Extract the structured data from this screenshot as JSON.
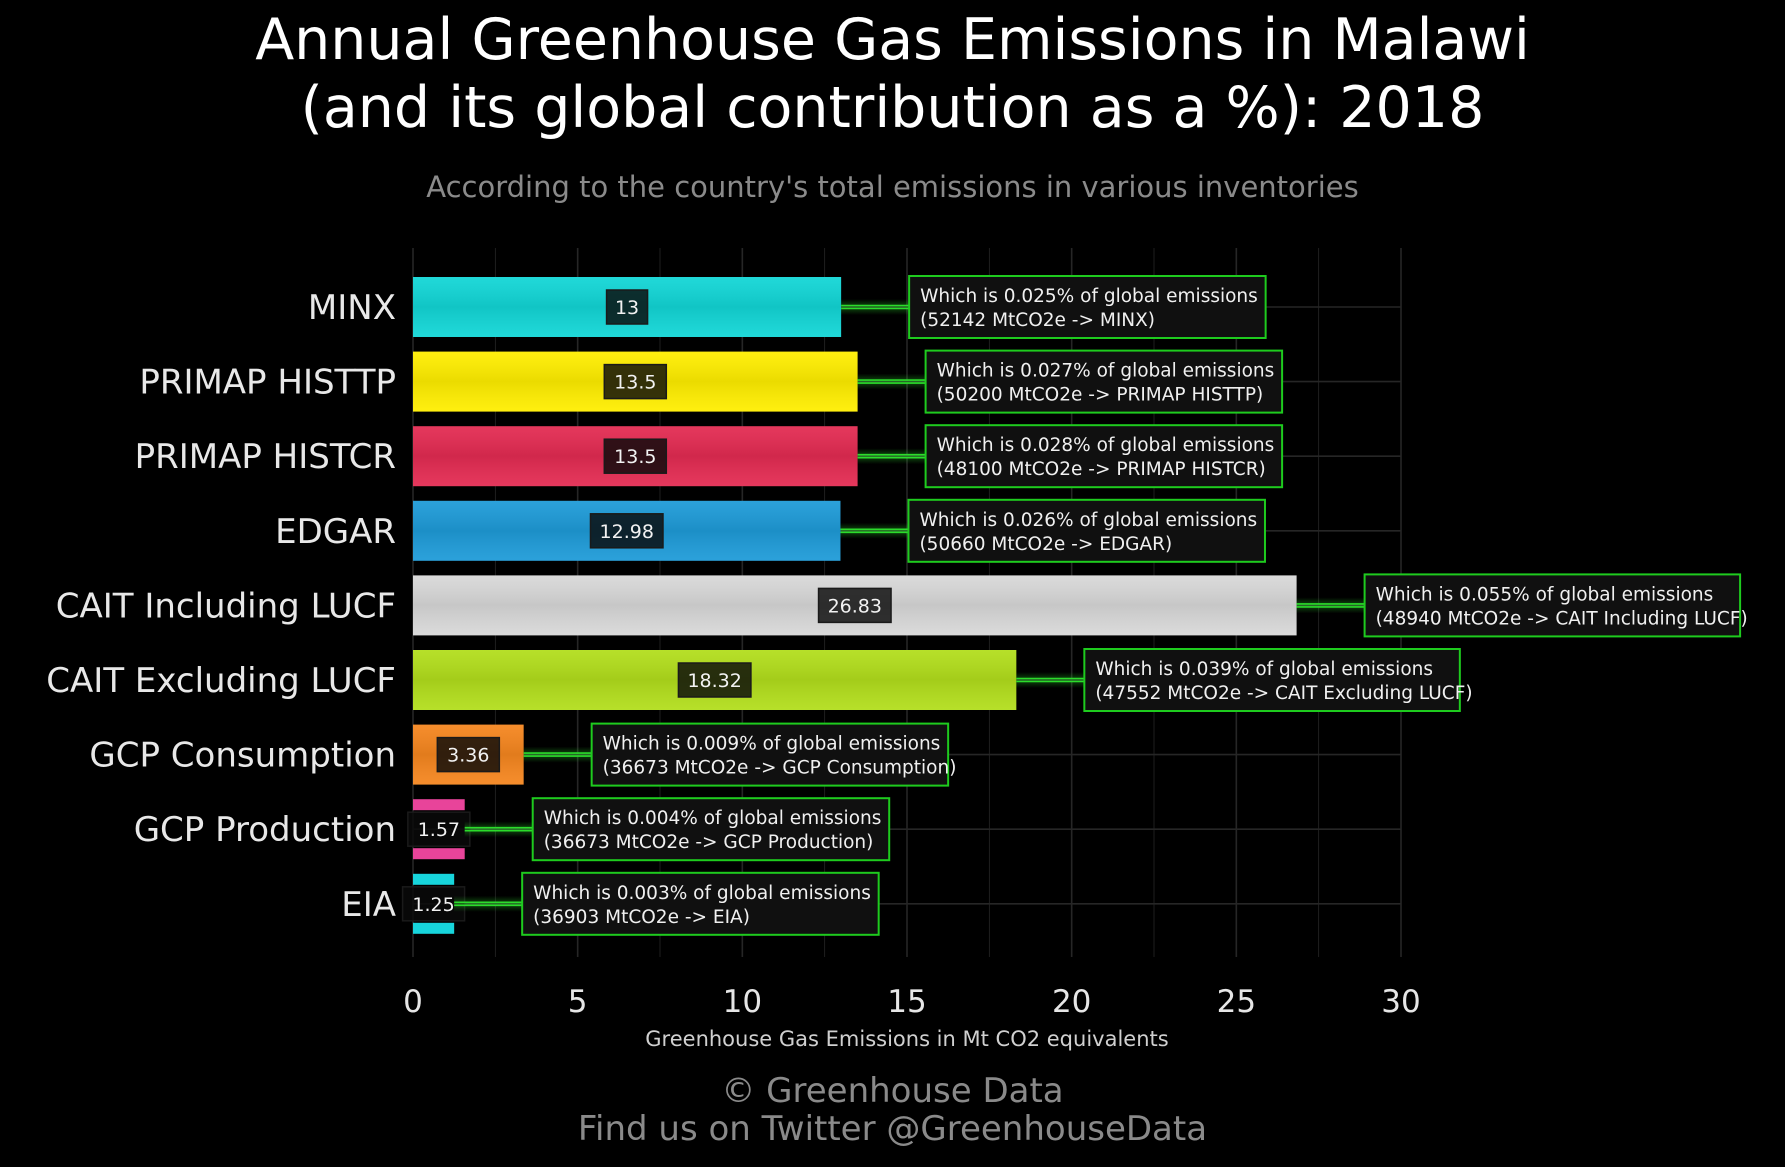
{
  "title_line1": "Annual Greenhouse Gas Emissions in Malawi",
  "title_line2": "(and its global contribution as a %): 2018",
  "subtitle": "According to the country's total emissions in various inventories",
  "footer_line1": "© Greenhouse Data",
  "footer_line2": "Find us on Twitter @GreenhouseData",
  "chart_data": {
    "type": "bar",
    "orientation": "horizontal",
    "xlabel": "Greenhouse Gas Emissions in Mt CO2 equivalents",
    "ylabel": "",
    "xlim": [
      0,
      30
    ],
    "xticks": [
      "0",
      "5",
      "10",
      "15",
      "20",
      "25",
      "30"
    ],
    "grid": true,
    "categories": [
      "MINX",
      "PRIMAP HISTTP",
      "PRIMAP HISTCR",
      "EDGAR",
      "CAIT Including LUCF",
      "CAIT Excluding LUCF",
      "GCP Consumption",
      "GCP Production",
      "EIA"
    ],
    "values": [
      13,
      13.5,
      13.5,
      12.98,
      26.83,
      18.32,
      3.36,
      1.57,
      1.25
    ],
    "value_labels": [
      "13",
      "13.5",
      "13.5",
      "12.98",
      "26.83",
      "18.32",
      "3.36",
      "1.57",
      "1.25"
    ],
    "bar_colors": [
      "#12d6d6",
      "#ffee00",
      "#e32b52",
      "#1e9bd8",
      "#d8d8d8",
      "#b2de1c",
      "#f5861f",
      "#e8449a",
      "#17d5dc"
    ],
    "bar_thickness": [
      1,
      1,
      1,
      1,
      1,
      1,
      1,
      0.2,
      0.2
    ],
    "annotations": [
      {
        "line1": "Which is 0.025% of global emissions",
        "line2": "(52142 MtCO2e -> MINX)"
      },
      {
        "line1": "Which is 0.027% of global emissions",
        "line2": "(50200 MtCO2e -> PRIMAP HISTTP)"
      },
      {
        "line1": "Which is 0.028% of global emissions",
        "line2": "(48100 MtCO2e -> PRIMAP HISTCR)"
      },
      {
        "line1": "Which is 0.026% of global emissions",
        "line2": "(50660 MtCO2e -> EDGAR)"
      },
      {
        "line1": "Which is 0.055% of global emissions",
        "line2": "(48940 MtCO2e -> CAIT Including LUCF)"
      },
      {
        "line1": "Which is 0.039% of global emissions",
        "line2": "(47552 MtCO2e -> CAIT Excluding LUCF)"
      },
      {
        "line1": "Which is 0.009% of global emissions",
        "line2": "(36673 MtCO2e -> GCP Consumption)"
      },
      {
        "line1": "Which is 0.004% of global emissions",
        "line2": "(36673 MtCO2e -> GCP Production)"
      },
      {
        "line1": "Which is 0.003% of global emissions",
        "line2": "(36903 MtCO2e -> EIA)"
      }
    ],
    "colors": {
      "background": "#000000",
      "grid": "#262626",
      "annotation_border": "#1ecb1e",
      "connector": "#2bdc2b"
    }
  }
}
